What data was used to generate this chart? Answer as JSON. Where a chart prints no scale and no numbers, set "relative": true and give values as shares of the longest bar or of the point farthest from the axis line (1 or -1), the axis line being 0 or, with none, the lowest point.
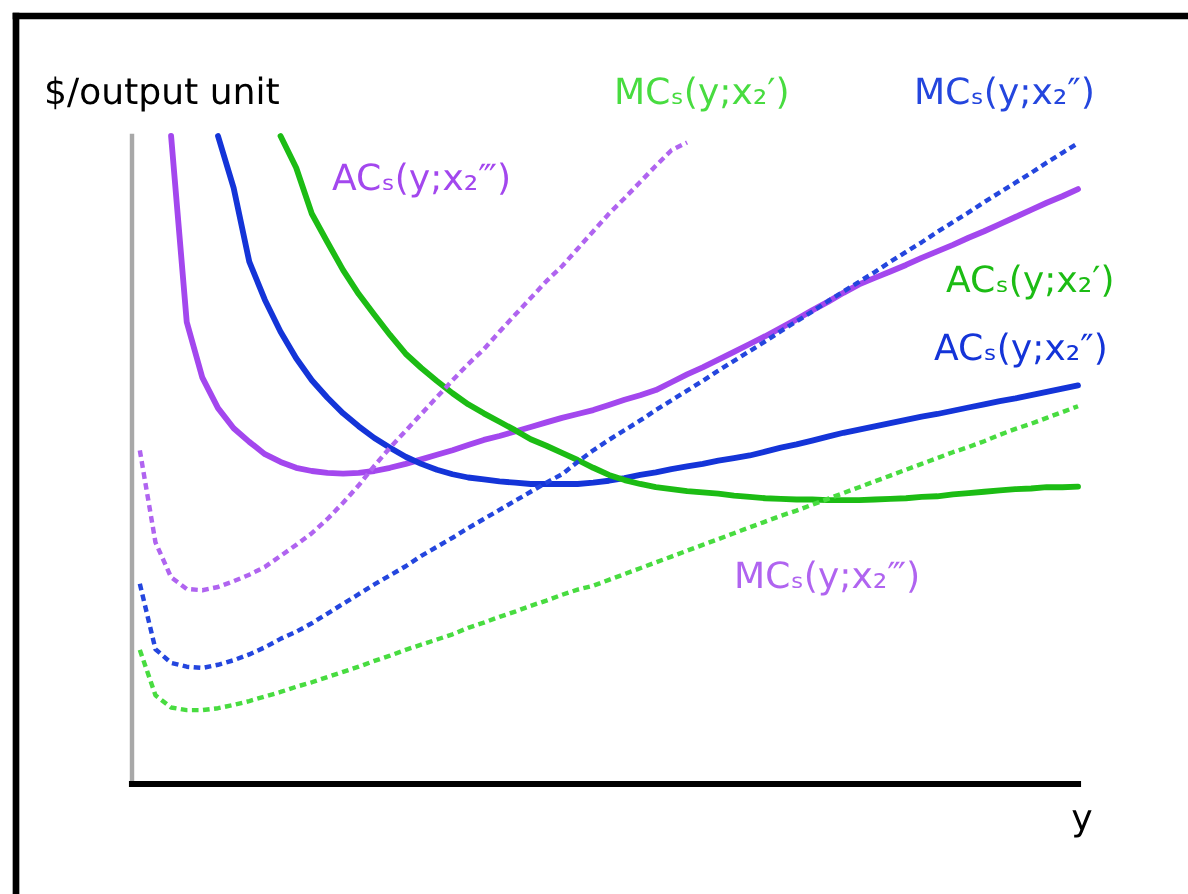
{
  "chart_data": {
    "type": "line",
    "relative": true,
    "ylabel": "$/output unit",
    "xlabel": "y",
    "categories": [
      null,
      null,
      null,
      null,
      null,
      null,
      null,
      null,
      null,
      null,
      null,
      null,
      null,
      null,
      null,
      null,
      null,
      null,
      null,
      null,
      null,
      null,
      null,
      null,
      null,
      null,
      null,
      null,
      null,
      null,
      null,
      null,
      null,
      null,
      null,
      null,
      null,
      null,
      null,
      null,
      null,
      null,
      null,
      null,
      null,
      null,
      null,
      null,
      null,
      null,
      null,
      null,
      null,
      null,
      null,
      null,
      null,
      null,
      null,
      null,
      null
    ],
    "series": [
      {
        "name": "ACₛ(y;x₂‴)",
        "color": "#a347ee",
        "line_style": "solid",
        "values": [
          null,
          null,
          1,
          0.713,
          0.627,
          0.58,
          0.549,
          0.528,
          0.509,
          0.497,
          0.488,
          0.483,
          0.48,
          0.479,
          0.48,
          0.483,
          0.488,
          0.494,
          0.501,
          0.508,
          0.515,
          0.523,
          0.531,
          0.537,
          0.544,
          0.551,
          0.558,
          0.565,
          0.571,
          0.577,
          0.585,
          0.593,
          0.6,
          0.608,
          0.62,
          0.632,
          0.643,
          0.655,
          0.667,
          0.679,
          0.691,
          0.704,
          0.717,
          0.731,
          0.744,
          0.758,
          0.771,
          0.781,
          0.791,
          0.801,
          0.812,
          0.822,
          0.832,
          0.843,
          0.853,
          0.864,
          0.875,
          0.886,
          0.897,
          0.907,
          0.918
        ]
      },
      {
        "name": "ACₛ(y;x₂″)",
        "color": "#1434d8",
        "line_style": "solid",
        "values": [
          null,
          null,
          null,
          null,
          null,
          1,
          0.92,
          0.806,
          0.747,
          0.698,
          0.657,
          0.623,
          0.596,
          0.572,
          0.552,
          0.534,
          0.519,
          0.505,
          0.494,
          0.485,
          0.478,
          0.473,
          0.47,
          0.467,
          0.465,
          0.463,
          0.463,
          0.463,
          0.463,
          0.465,
          0.468,
          0.472,
          0.477,
          0.481,
          0.486,
          0.49,
          0.494,
          0.499,
          0.503,
          0.507,
          0.513,
          0.519,
          0.524,
          0.53,
          0.536,
          0.542,
          0.547,
          0.552,
          0.557,
          0.562,
          0.567,
          0.571,
          0.576,
          0.581,
          0.586,
          0.591,
          0.595,
          0.6,
          0.605,
          0.61,
          0.615
        ]
      },
      {
        "name": "ACₛ(y;x₂′)",
        "color": "#1cbc14",
        "line_style": "solid",
        "values": [
          null,
          null,
          null,
          null,
          null,
          null,
          null,
          null,
          null,
          1,
          0.951,
          0.88,
          0.836,
          0.793,
          0.756,
          0.724,
          0.693,
          0.664,
          0.642,
          0.622,
          0.603,
          0.586,
          0.572,
          0.559,
          0.546,
          0.532,
          0.522,
          0.511,
          0.5,
          0.488,
          0.477,
          0.469,
          0.463,
          0.458,
          0.455,
          0.452,
          0.45,
          0.448,
          0.445,
          0.443,
          0.441,
          0.44,
          0.439,
          0.439,
          0.438,
          0.438,
          0.438,
          0.439,
          0.44,
          0.441,
          0.443,
          0.444,
          0.447,
          0.449,
          0.451,
          0.453,
          0.455,
          0.456,
          0.458,
          0.458,
          0.459
        ]
      },
      {
        "name": "MCₛ(y;x₂‴)",
        "color": "#b064f0",
        "line_style": "dotted",
        "values": [
          0.515,
          0.373,
          0.319,
          0.301,
          0.299,
          0.304,
          0.313,
          0.323,
          0.335,
          0.352,
          0.369,
          0.387,
          0.409,
          0.434,
          0.461,
          0.491,
          0.519,
          0.545,
          0.571,
          0.597,
          0.623,
          0.648,
          0.671,
          0.698,
          0.724,
          0.75,
          0.776,
          0.799,
          0.826,
          0.853,
          0.88,
          0.904,
          0.929,
          0.954,
          0.978,
          0.99,
          null,
          null,
          null,
          null,
          null,
          null,
          null,
          null,
          null,
          null,
          null,
          null,
          null,
          null,
          null,
          null,
          null,
          null,
          null,
          null,
          null,
          null,
          null,
          null,
          null
        ]
      },
      {
        "name": "MCₛ(y;x₂″)",
        "color": "#2446de",
        "line_style": "dotted",
        "values": [
          0.309,
          0.208,
          0.187,
          0.181,
          0.179,
          0.184,
          0.191,
          0.2,
          0.211,
          0.224,
          0.235,
          0.248,
          0.263,
          0.278,
          0.293,
          0.308,
          0.322,
          0.336,
          0.352,
          0.366,
          0.38,
          0.395,
          0.409,
          0.423,
          0.437,
          0.451,
          0.465,
          0.478,
          0.497,
          0.515,
          0.531,
          0.546,
          0.561,
          0.577,
          0.592,
          0.607,
          0.622,
          0.638,
          0.653,
          0.668,
          0.683,
          0.699,
          0.714,
          0.729,
          0.745,
          0.76,
          0.775,
          0.79,
          0.806,
          0.821,
          0.836,
          0.852,
          0.867,
          0.882,
          0.898,
          0.913,
          0.928,
          0.943,
          0.959,
          0.974,
          0.989
        ]
      },
      {
        "name": "MCₛ(y;x₂′)",
        "color": "#48dc40",
        "line_style": "dotted",
        "values": [
          0.207,
          0.137,
          0.118,
          0.114,
          0.114,
          0.117,
          0.122,
          0.128,
          0.135,
          0.142,
          0.15,
          0.157,
          0.165,
          0.173,
          0.181,
          0.19,
          0.198,
          0.207,
          0.215,
          0.223,
          0.231,
          0.241,
          0.249,
          0.258,
          0.266,
          0.275,
          0.283,
          0.292,
          0.3,
          0.306,
          0.315,
          0.324,
          0.333,
          0.342,
          0.351,
          0.36,
          0.369,
          0.378,
          0.387,
          0.396,
          0.405,
          0.414,
          0.422,
          0.431,
          0.44,
          0.449,
          0.458,
          0.467,
          0.476,
          0.485,
          0.494,
          0.503,
          0.512,
          0.52,
          0.529,
          0.539,
          0.548,
          0.556,
          0.565,
          0.574,
          0.583
        ]
      }
    ]
  }
}
